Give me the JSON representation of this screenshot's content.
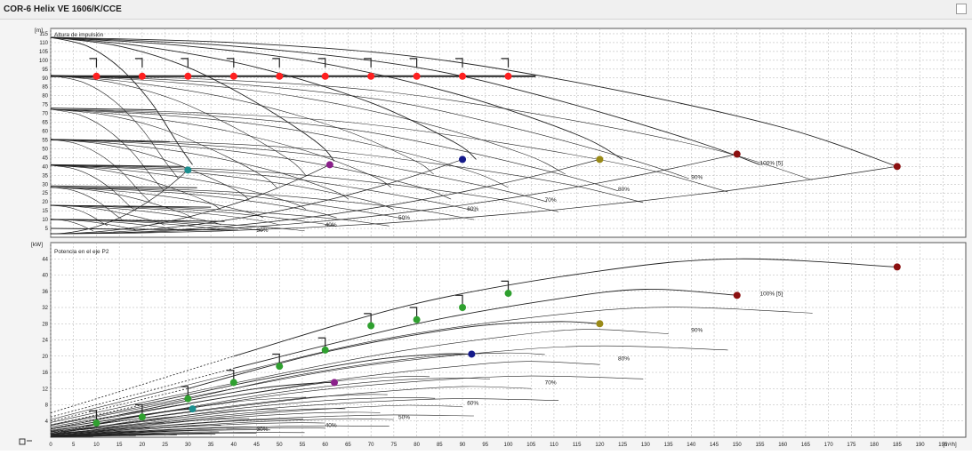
{
  "window": {
    "title": "COR-6 Helix VE 1606/K/CCE"
  },
  "icons": {
    "close_box": "close-box-icon",
    "pump_symbol": "pump-symbol-icon"
  },
  "colors": {
    "curve": "#222222",
    "grid": "#b0b0b0",
    "duty_point_red": "#ff2020",
    "duty_point_green": "#2fa02f",
    "darkred": "#8b1010",
    "olive": "#9a8a18",
    "navy": "#151a8a",
    "purple": "#8a208a",
    "teal": "#1c8f8f"
  },
  "chart_data": [
    {
      "type": "line",
      "title": "Altura de impulsión",
      "ylabel": "[m]",
      "xlabel": "[m³/h]",
      "xlim": [
        0,
        200
      ],
      "ylim": [
        0,
        118
      ],
      "grid": true,
      "x_ticks": [
        0,
        5,
        10,
        15,
        20,
        25,
        30,
        35,
        40,
        45,
        50,
        55,
        60,
        65,
        70,
        75,
        80,
        85,
        90,
        95,
        100,
        105,
        110,
        115,
        120,
        125,
        130,
        135,
        140,
        145,
        150,
        155,
        160,
        165,
        170,
        175,
        180,
        185,
        190,
        195
      ],
      "y_ticks": [
        5,
        10,
        15,
        20,
        25,
        30,
        35,
        40,
        45,
        50,
        55,
        60,
        65,
        70,
        75,
        80,
        85,
        90,
        95,
        100,
        105,
        110,
        115
      ],
      "speed_curve_labels": [
        {
          "label": "100% [5]",
          "x": 155,
          "y": 41
        },
        {
          "label": "90%",
          "x": 140,
          "y": 33
        },
        {
          "label": "80%",
          "x": 124,
          "y": 26
        },
        {
          "label": "70%",
          "x": 108,
          "y": 20
        },
        {
          "label": "60%",
          "x": 91,
          "y": 15
        },
        {
          "label": "50%",
          "x": 76,
          "y": 10
        },
        {
          "label": "40%",
          "x": 60,
          "y": 6
        },
        {
          "label": "30%",
          "x": 45,
          "y": 3
        }
      ],
      "pump_curves": [
        {
          "pumps": 6,
          "x": [
            0,
            40,
            80,
            120,
            160,
            185
          ],
          "y": [
            113,
            110,
            102,
            85,
            62,
            40
          ]
        },
        {
          "pumps": 5,
          "x": [
            0,
            40,
            80,
            110,
            140,
            155
          ],
          "y": [
            113,
            108,
            96,
            78,
            55,
            41
          ]
        },
        {
          "pumps": 4,
          "x": [
            0,
            30,
            60,
            90,
            115,
            125
          ],
          "y": [
            113,
            108,
            98,
            80,
            58,
            44
          ]
        },
        {
          "pumps": 3,
          "x": [
            0,
            20,
            45,
            70,
            88,
            93
          ],
          "y": [
            113,
            108,
            96,
            76,
            54,
            44
          ]
        },
        {
          "pumps": 2,
          "x": [
            0,
            15,
            30,
            45,
            58,
            62
          ],
          "y": [
            113,
            108,
            96,
            76,
            54,
            43
          ]
        },
        {
          "pumps": 1,
          "x": [
            0,
            8,
            15,
            22,
            28,
            31
          ],
          "y": [
            113,
            108,
            96,
            76,
            52,
            41
          ]
        }
      ],
      "reduced_speed_levels": [
        91,
        73,
        55,
        41,
        29,
        18,
        10,
        5
      ],
      "duty_points": {
        "setpoint_head": 91,
        "red_x": [
          10,
          20,
          30,
          40,
          50,
          60,
          70,
          80,
          90,
          100
        ],
        "end_points": [
          {
            "x": 185,
            "y": 40,
            "color": "#8b1010"
          },
          {
            "x": 150,
            "y": 47,
            "color": "#8b1010"
          },
          {
            "x": 120,
            "y": 44,
            "color": "#9a8a18"
          },
          {
            "x": 90,
            "y": 44,
            "color": "#151a8a"
          },
          {
            "x": 61,
            "y": 41,
            "color": "#8a208a"
          },
          {
            "x": 30,
            "y": 38,
            "color": "#1c8f8f"
          }
        ]
      }
    },
    {
      "type": "line",
      "title": "Potencia en el eje P2",
      "ylabel": "[kW]",
      "xlabel": "[m³/h]",
      "xlim": [
        0,
        200
      ],
      "ylim": [
        0,
        48
      ],
      "grid": true,
      "x_ticks": [
        0,
        5,
        10,
        15,
        20,
        25,
        30,
        35,
        40,
        45,
        50,
        55,
        60,
        65,
        70,
        75,
        80,
        85,
        90,
        95,
        100,
        105,
        110,
        115,
        120,
        125,
        130,
        135,
        140,
        145,
        150,
        155,
        160,
        165,
        170,
        175,
        180,
        185,
        190,
        195
      ],
      "y_ticks": [
        4,
        8,
        12,
        16,
        20,
        24,
        28,
        32,
        36,
        40,
        44
      ],
      "speed_curve_labels": [
        {
          "label": "100% [5]",
          "x": 155,
          "y": 35
        },
        {
          "label": "90%",
          "x": 140,
          "y": 26
        },
        {
          "label": "80%",
          "x": 124,
          "y": 19
        },
        {
          "label": "70%",
          "x": 108,
          "y": 13
        },
        {
          "label": "60%",
          "x": 91,
          "y": 8
        },
        {
          "label": "50%",
          "x": 76,
          "y": 4.5
        },
        {
          "label": "40%",
          "x": 60,
          "y": 2.5
        },
        {
          "label": "30%",
          "x": 45,
          "y": 1.5
        }
      ],
      "power_curves": [
        {
          "pumps": 6,
          "x": [
            0,
            40,
            80,
            120,
            150,
            185
          ],
          "y": [
            6,
            20,
            33,
            41,
            44,
            42
          ]
        },
        {
          "pumps": 5,
          "x": [
            0,
            40,
            80,
            110,
            130,
            150
          ],
          "y": [
            5,
            17,
            28,
            34,
            36.5,
            35
          ]
        },
        {
          "pumps": 4,
          "x": [
            0,
            30,
            60,
            90,
            110,
            120
          ],
          "y": [
            4,
            12,
            21,
            27,
            28.5,
            28
          ]
        },
        {
          "pumps": 3,
          "x": [
            0,
            20,
            45,
            70,
            85,
            92
          ],
          "y": [
            3,
            8,
            14,
            19,
            20.5,
            20.5
          ]
        },
        {
          "pumps": 2,
          "x": [
            0,
            15,
            30,
            45,
            57,
            62
          ],
          "y": [
            2,
            5.5,
            9,
            12,
            13.3,
            13.5
          ]
        },
        {
          "pumps": 1,
          "x": [
            0,
            8,
            15,
            22,
            28,
            31
          ],
          "y": [
            1,
            2.7,
            4.3,
            5.8,
            6.7,
            7
          ]
        }
      ],
      "duty_points": {
        "green": [
          {
            "x": 10,
            "y": 3.5
          },
          {
            "x": 20,
            "y": 5
          },
          {
            "x": 30,
            "y": 9.5
          },
          {
            "x": 40,
            "y": 13.5
          },
          {
            "x": 50,
            "y": 17.5
          },
          {
            "x": 60,
            "y": 21.5
          },
          {
            "x": 70,
            "y": 27.5
          },
          {
            "x": 80,
            "y": 29
          },
          {
            "x": 90,
            "y": 32
          },
          {
            "x": 100,
            "y": 35.5
          }
        ],
        "end_points": [
          {
            "x": 185,
            "y": 42,
            "color": "#8b1010"
          },
          {
            "x": 150,
            "y": 35,
            "color": "#8b1010"
          },
          {
            "x": 120,
            "y": 28,
            "color": "#9a8a18"
          },
          {
            "x": 92,
            "y": 20.5,
            "color": "#151a8a"
          },
          {
            "x": 62,
            "y": 13.5,
            "color": "#8a208a"
          },
          {
            "x": 31,
            "y": 7,
            "color": "#1c8f8f"
          }
        ]
      }
    }
  ]
}
